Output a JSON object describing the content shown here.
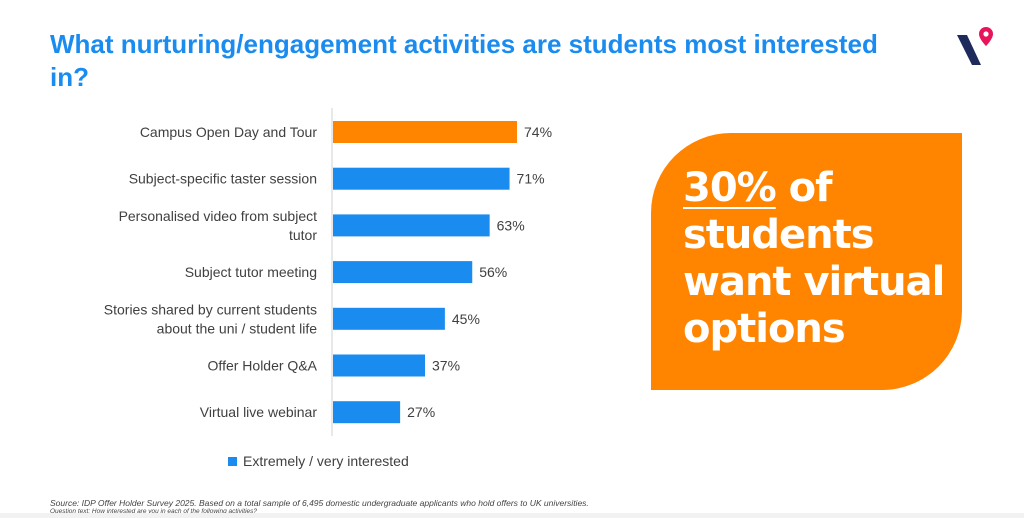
{
  "title": "What nurturing/engagement activities are students most interested in?",
  "callout": {
    "highlight": "30%",
    "text_rest": " of students want virtual options"
  },
  "footer": {
    "source": "Source: IDP Offer Holder Survey 2025. Based on a total sample of 6,495 domestic undergraduate applicants who hold offers to UK universities.",
    "question": "Question text: How interested are you in each of the following activities?"
  },
  "colors": {
    "accent_blue": "#1a8cf0",
    "highlight_orange": "#ff8400",
    "logo_navy": "#1f2a5c",
    "logo_pin": "#e8155b"
  },
  "logo_icon": "idp-v-pin-logo",
  "chart_data": {
    "type": "bar",
    "orientation": "horizontal",
    "categories": [
      "Campus Open Day and Tour",
      "Subject-specific taster session",
      "Personalised video from subject tutor",
      "Subject tutor meeting",
      "Stories shared by current students about the uni / student life",
      "Offer Holder Q&A",
      "Virtual live webinar"
    ],
    "category_lines": [
      [
        "Campus Open Day and Tour"
      ],
      [
        "Subject-specific taster session"
      ],
      [
        "Personalised video from subject",
        "tutor"
      ],
      [
        "Subject tutor meeting"
      ],
      [
        "Stories shared by current students",
        "about the uni / student life"
      ],
      [
        "Offer Holder Q&A"
      ],
      [
        "Virtual live webinar"
      ]
    ],
    "series": [
      {
        "name": "Extremely / very interested",
        "values": [
          74,
          71,
          63,
          56,
          45,
          37,
          27
        ]
      }
    ],
    "data_labels": [
      "74%",
      "71%",
      "63%",
      "56%",
      "45%",
      "37%",
      "27%"
    ],
    "highlighted_index": 0,
    "value_unit": "%",
    "legend": "bottom",
    "grid": false
  }
}
